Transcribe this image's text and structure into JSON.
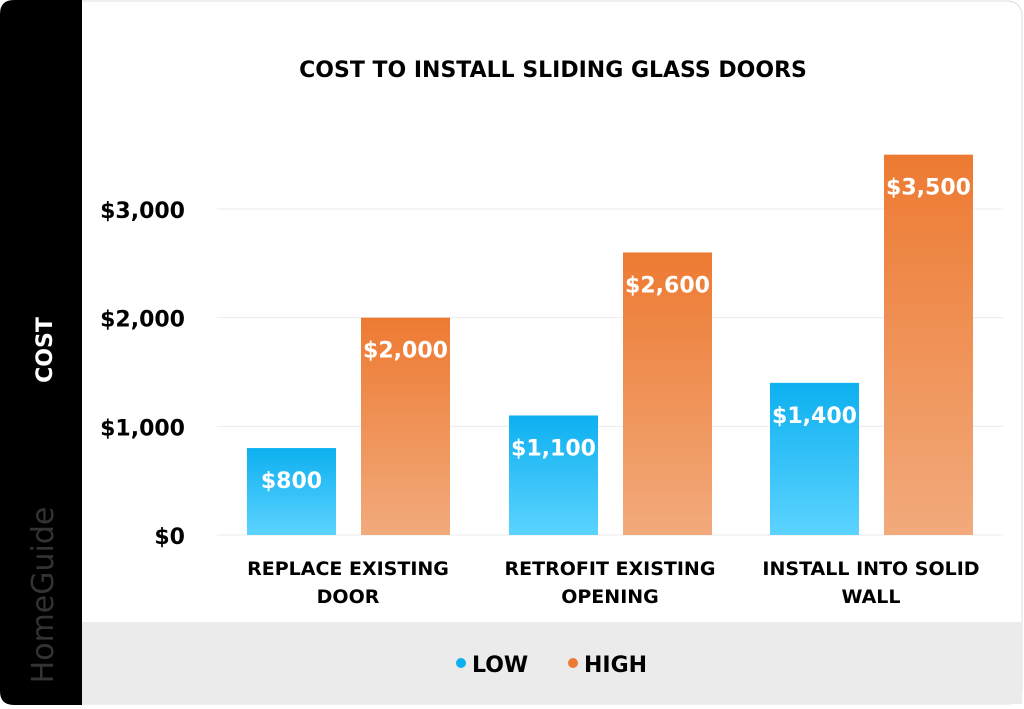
{
  "brand": "HomeGuide",
  "colors": {
    "low": "#0db0f0",
    "low_light": "#5cd3ff",
    "high": "#ed7a32",
    "high_light": "#f2aa7c",
    "sidebar": "#000000",
    "legend_band": "#ebebeb"
  },
  "chart_data": {
    "type": "bar",
    "title": "COST TO INSTALL SLIDING GLASS DOORS",
    "xlabel": "",
    "ylabel": "COST",
    "ylim": [
      0,
      3500
    ],
    "yticks": [
      0,
      1000,
      2000,
      3000
    ],
    "ytick_labels": [
      "$0",
      "$1,000",
      "$2,000",
      "$3,000"
    ],
    "grid": true,
    "legend_position": "bottom",
    "categories": [
      [
        "REPLACE EXISTING",
        "DOOR"
      ],
      [
        "RETROFIT EXISTING",
        "OPENING"
      ],
      [
        "INSTALL INTO SOLID",
        "WALL"
      ]
    ],
    "series": [
      {
        "name": "LOW",
        "values": [
          800,
          1100,
          1400
        ],
        "labels": [
          "$800",
          "$1,100",
          "$1,400"
        ]
      },
      {
        "name": "HIGH",
        "values": [
          2000,
          2600,
          3500
        ],
        "labels": [
          "$2,000",
          "$2,600",
          "$3,500"
        ]
      }
    ]
  }
}
